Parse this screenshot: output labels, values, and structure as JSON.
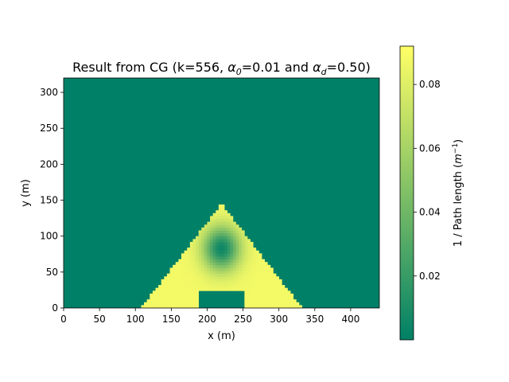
{
  "chart_data": {
    "type": "heatmap",
    "title": {
      "prefix": "Result from CG (k=556, ",
      "alpha0_sym": "α",
      "alpha0_sub": "0",
      "alpha0_val": "=0.01 and ",
      "alphad_sym": "α",
      "alphad_sub": "d",
      "alphad_val": "=0.50)"
    },
    "xlabel": "x (m)",
    "ylabel": "y (m)",
    "xlim": [
      0,
      440
    ],
    "ylim": [
      0,
      320
    ],
    "xticks": [
      0,
      50,
      100,
      150,
      200,
      250,
      300,
      350,
      400
    ],
    "yticks": [
      0,
      50,
      100,
      150,
      200,
      250,
      300
    ],
    "background_value": 0.0,
    "colorbar": {
      "label_prefix": "1 / Path length (",
      "label_unit": "m",
      "label_exp": "−1",
      "label_suffix": ")",
      "range": [
        0.0,
        0.092
      ],
      "ticks": [
        0.02,
        0.04,
        0.06,
        0.08
      ],
      "tick_labels": [
        "0.02",
        "0.04",
        "0.06",
        "0.08"
      ],
      "colormap": "summer",
      "colors": [
        "#008066",
        "#ffff66"
      ]
    },
    "regions": [
      {
        "name": "triangle",
        "base_x": [
          108,
          332
        ],
        "base_y": 0,
        "apex": [
          220,
          145
        ],
        "value": 0.088
      },
      {
        "name": "low-zone",
        "center": [
          220,
          83
        ],
        "radius": [
          32,
          38
        ],
        "min_value": 0.005
      },
      {
        "name": "source-block",
        "x": [
          190,
          250
        ],
        "y": [
          0,
          24
        ],
        "value": 0.0
      }
    ]
  }
}
